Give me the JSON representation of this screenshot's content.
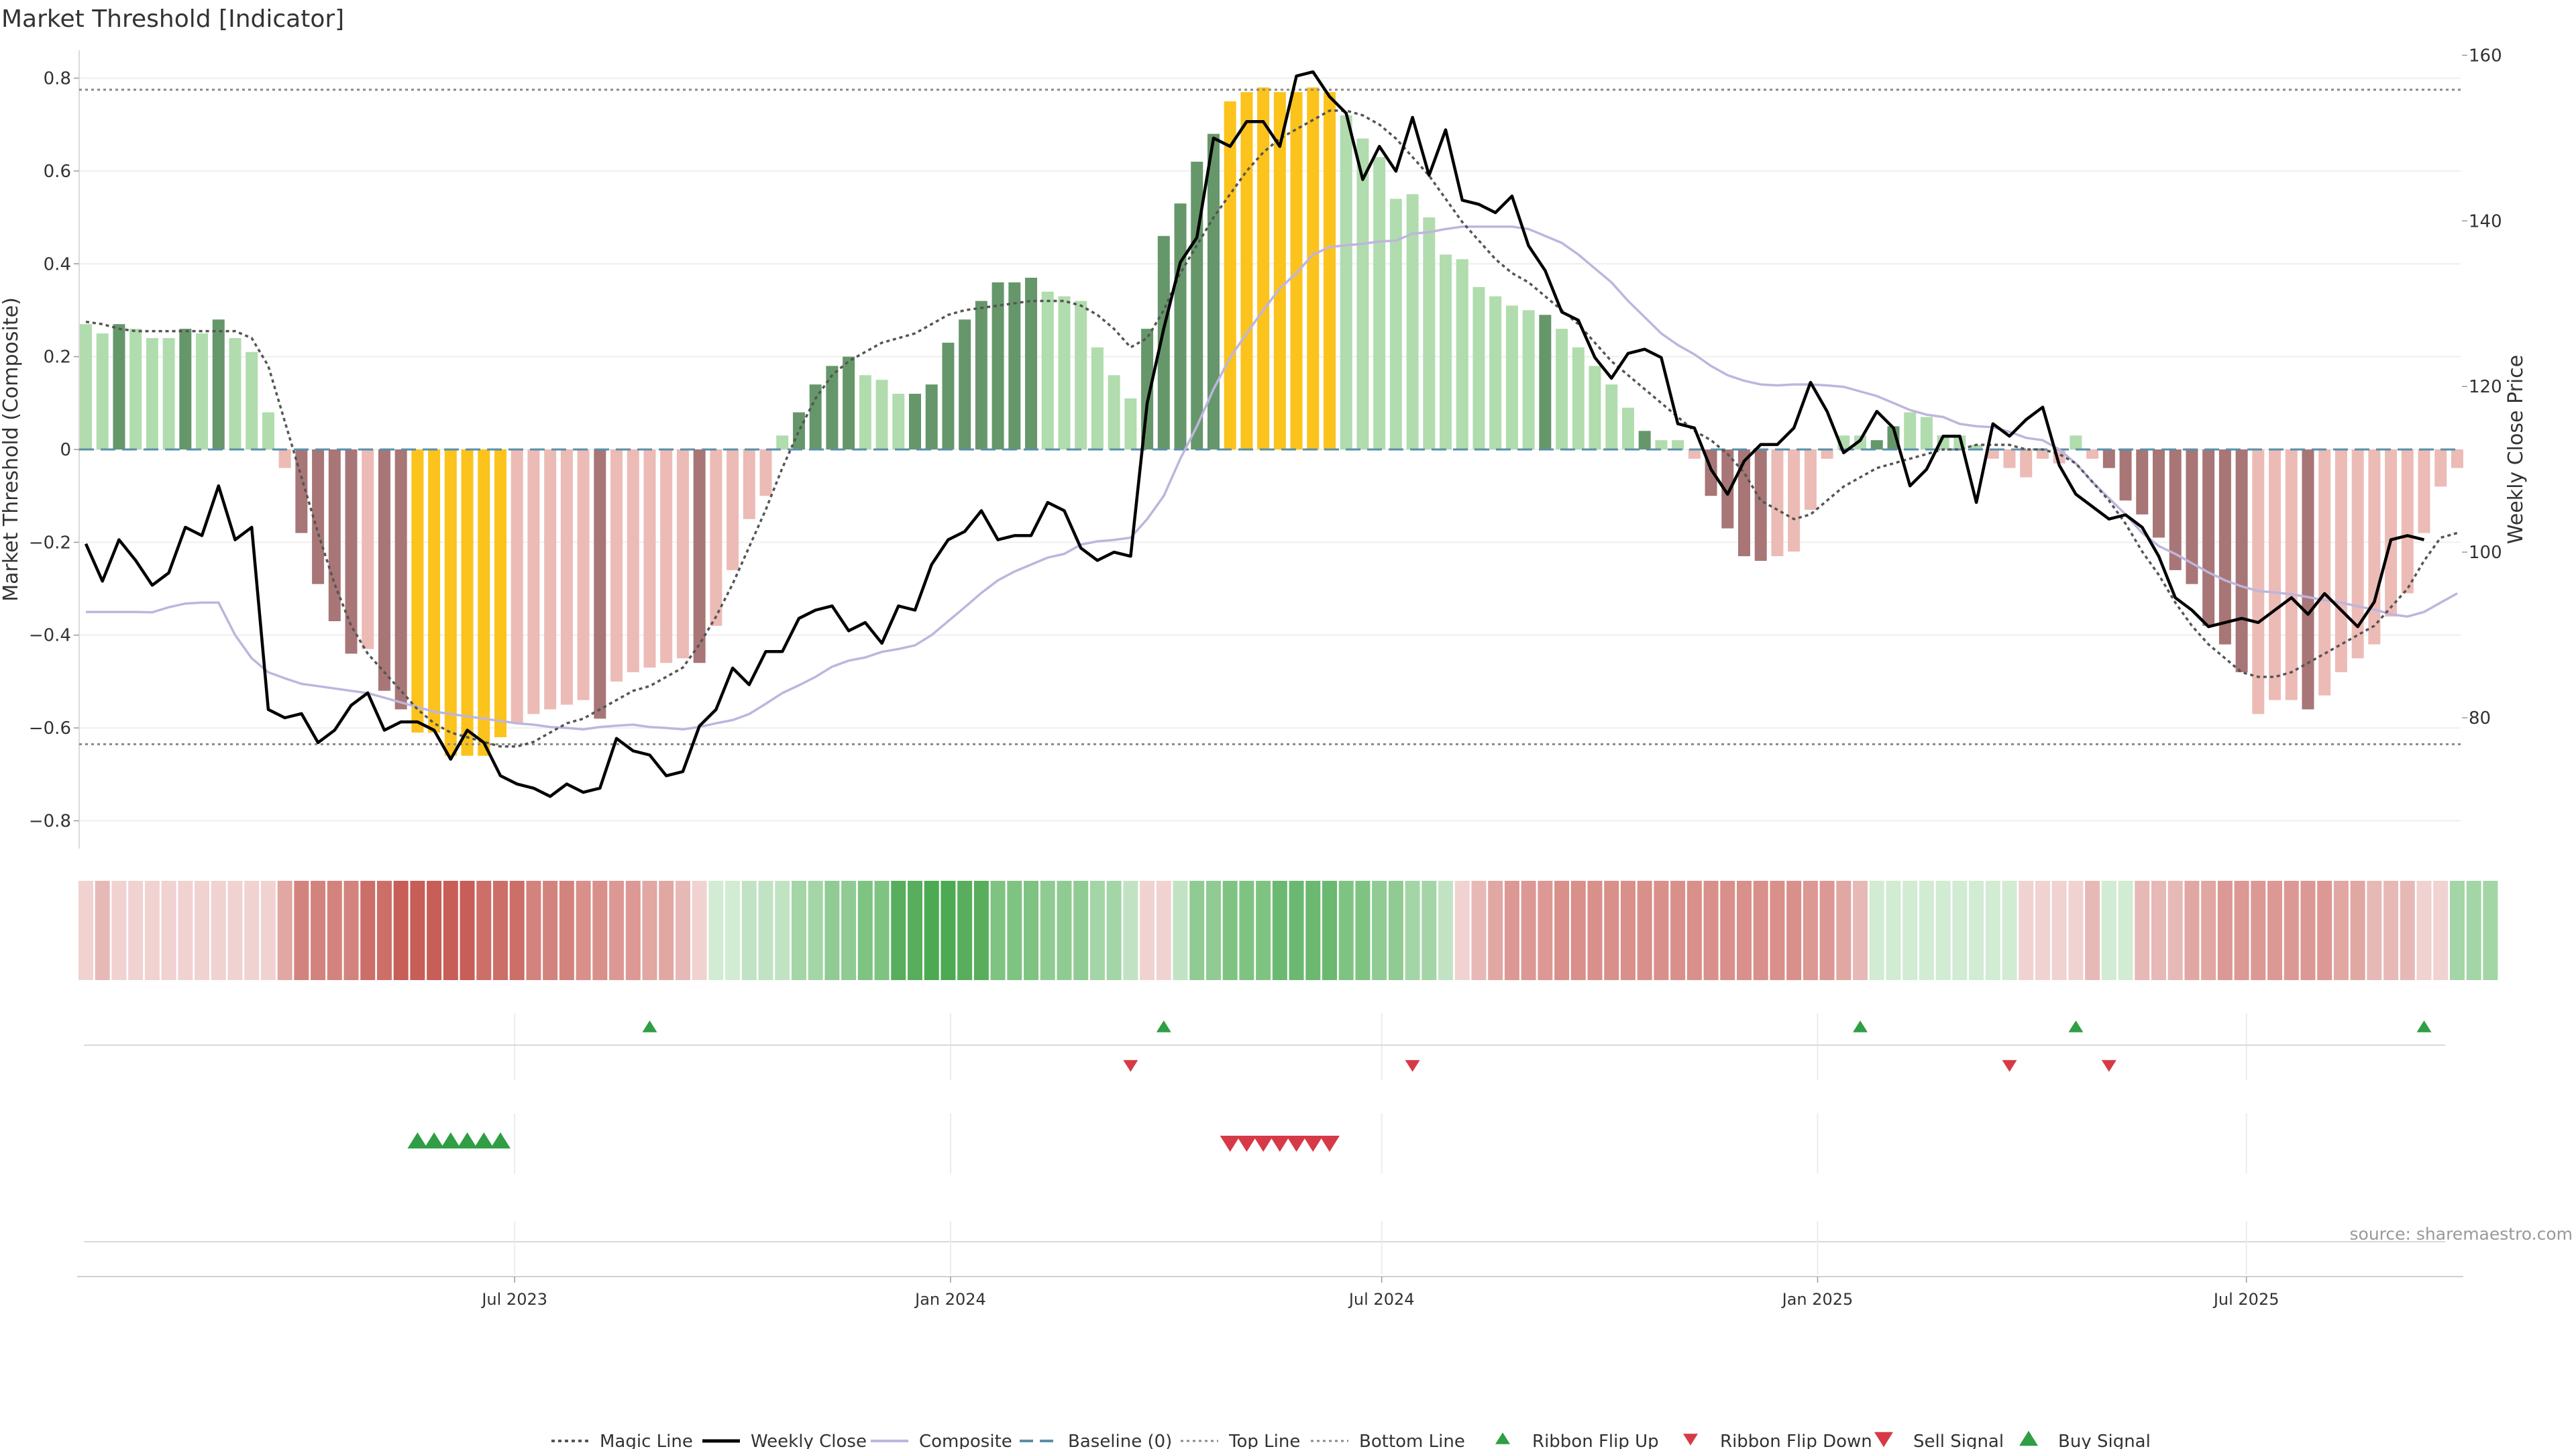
{
  "chart_data": {
    "type": "bar",
    "title": "Market Threshold [Indicator]",
    "source": "source: sharemaestro.com",
    "ylabel_left": "Market Threshold (Composite)",
    "ylabel_right": "Weekly Close Price",
    "ylim_left": [
      -0.86,
      0.86
    ],
    "ylim_right": [
      64.2,
      160.6
    ],
    "yticks_left": [
      "0.8",
      "0.6",
      "0.4",
      "0.2",
      "0",
      "−0.2",
      "−0.4",
      "−0.6",
      "−0.8"
    ],
    "yticks_right": [
      "160",
      "140",
      "120",
      "100",
      "80"
    ],
    "x_start": "2023-01-01",
    "week_count": 144,
    "x_ticks": [
      {
        "label": "Jul 2023",
        "date": "2023-07-01"
      },
      {
        "label": "Jan 2024",
        "date": "2024-01-01"
      },
      {
        "label": "Jul 2024",
        "date": "2024-07-01"
      },
      {
        "label": "Jan 2025",
        "date": "2025-01-01"
      },
      {
        "label": "Jul 2025",
        "date": "2025-07-01"
      }
    ],
    "reference_lines": {
      "top": 0.775,
      "bottom": -0.635,
      "baseline": 0
    },
    "colors": {
      "pos_strong": "#66976a",
      "pos_light": "#b1dcae",
      "neg_strong": "#a87676",
      "neg_light": "#ecbbb6",
      "extreme": "#fbc31b",
      "close": "#000000",
      "composite": "#beb5de",
      "magic": "#555555",
      "baseline": "#5a8fa8",
      "ref": "#888888",
      "buy": "#2f9e44",
      "sell": "#d63a46"
    },
    "composite_bars": [
      0.27,
      0.25,
      0.27,
      0.26,
      0.24,
      0.24,
      0.26,
      0.25,
      0.28,
      0.24,
      0.21,
      0.08,
      -0.04,
      -0.18,
      -0.29,
      -0.37,
      -0.44,
      -0.43,
      -0.52,
      -0.56,
      -0.61,
      -0.61,
      -0.66,
      -0.66,
      -0.66,
      -0.62,
      -0.59,
      -0.57,
      -0.56,
      -0.55,
      -0.54,
      -0.58,
      -0.5,
      -0.48,
      -0.47,
      -0.46,
      -0.45,
      -0.46,
      -0.38,
      -0.26,
      -0.15,
      -0.1,
      0.03,
      0.08,
      0.14,
      0.18,
      0.2,
      0.16,
      0.15,
      0.12,
      0.12,
      0.14,
      0.23,
      0.28,
      0.32,
      0.36,
      0.36,
      0.37,
      0.34,
      0.33,
      0.32,
      0.22,
      0.16,
      0.11,
      0.26,
      0.46,
      0.53,
      0.62,
      0.68,
      0.75,
      0.77,
      0.78,
      0.77,
      0.77,
      0.78,
      0.77,
      0.72,
      0.67,
      0.63,
      0.54,
      0.55,
      0.5,
      0.42,
      0.41,
      0.35,
      0.33,
      0.31,
      0.3,
      0.29,
      0.26,
      0.22,
      0.18,
      0.14,
      0.09,
      0.04,
      0.02,
      0.02,
      -0.02,
      -0.1,
      -0.17,
      -0.23,
      -0.24,
      -0.23,
      -0.22,
      -0.13,
      -0.02,
      0.03,
      0.03,
      0.02,
      0.05,
      0.08,
      0.07,
      0.03,
      0.03,
      0.01,
      -0.02,
      -0.04,
      -0.06,
      -0.02,
      -0.03,
      0.03,
      -0.02,
      -0.04,
      -0.11,
      -0.14,
      -0.19,
      -0.26,
      -0.29,
      -0.38,
      -0.42,
      -0.48,
      -0.57,
      -0.54,
      -0.54,
      -0.56,
      -0.53,
      -0.48,
      -0.45,
      -0.42,
      -0.36,
      -0.31,
      -0.18,
      -0.08,
      -0.04
    ],
    "composite_bar_styles": [
      "l",
      "l",
      "s",
      "l",
      "l",
      "l",
      "s",
      "l",
      "s",
      "l",
      "l",
      "l",
      "l",
      "s",
      "s",
      "s",
      "s",
      "l",
      "s",
      "s",
      "y",
      "y",
      "y",
      "y",
      "y",
      "y",
      "l",
      "l",
      "l",
      "l",
      "l",
      "s",
      "l",
      "l",
      "l",
      "l",
      "l",
      "s",
      "l",
      "l",
      "l",
      "l",
      "l",
      "s",
      "s",
      "s",
      "s",
      "l",
      "l",
      "l",
      "s",
      "s",
      "s",
      "s",
      "s",
      "s",
      "s",
      "s",
      "l",
      "l",
      "l",
      "l",
      "l",
      "l",
      "s",
      "s",
      "s",
      "s",
      "s",
      "y",
      "y",
      "y",
      "y",
      "y",
      "y",
      "y",
      "l",
      "l",
      "l",
      "l",
      "l",
      "l",
      "l",
      "l",
      "l",
      "l",
      "l",
      "l",
      "s",
      "l",
      "l",
      "l",
      "l",
      "l",
      "s",
      "l",
      "l",
      "l",
      "s",
      "s",
      "s",
      "s",
      "l",
      "l",
      "l",
      "l",
      "l",
      "l",
      "s",
      "s",
      "l",
      "l",
      "l",
      "l",
      "l",
      "l",
      "l",
      "l",
      "l",
      "l",
      "l",
      "l",
      "s",
      "s",
      "s",
      "s",
      "s",
      "s",
      "s",
      "s",
      "s",
      "l",
      "l",
      "l",
      "s",
      "l",
      "l",
      "l",
      "l",
      "l",
      "l",
      "l",
      "l",
      "l"
    ],
    "weekly_close": [
      101.0,
      96.5,
      101.5,
      99.0,
      96.0,
      97.5,
      103.0,
      102.0,
      108.0,
      101.5,
      103.0,
      81.0,
      80.0,
      80.5,
      77.0,
      78.5,
      81.5,
      83.0,
      78.5,
      79.5,
      79.5,
      78.5,
      75.0,
      78.5,
      77.0,
      73.0,
      72.0,
      71.5,
      70.5,
      72.0,
      71.0,
      71.5,
      77.5,
      76.0,
      75.5,
      73.0,
      73.5,
      79.0,
      81.0,
      86.0,
      84.0,
      88.0,
      88.0,
      92.0,
      93.0,
      93.5,
      90.5,
      91.5,
      89.0,
      93.5,
      93.0,
      98.5,
      101.5,
      102.5,
      105.0,
      101.5,
      102.0,
      102.0,
      106.0,
      105.0,
      100.5,
      99.0,
      100.0,
      99.5,
      118.0,
      127.0,
      135.0,
      138.0,
      150.0,
      149.0,
      152.0,
      152.0,
      149.0,
      157.5,
      158.0,
      155.0,
      153.0,
      145.0,
      149.0,
      146.0,
      152.5,
      145.5,
      151.0,
      142.5,
      142.0,
      141.0,
      143.0,
      137.0,
      134.0,
      129.0,
      128.0,
      123.5,
      121.0,
      124.0,
      124.5,
      123.5,
      115.5,
      115.0,
      110.0,
      107.0,
      111.0,
      113.0,
      113.0,
      115.0,
      120.5,
      117.0,
      112.0,
      113.5,
      117.0,
      115.0,
      108.0,
      110.0,
      114.0,
      114.0,
      106.0,
      115.5,
      114.0,
      116.0,
      117.5,
      110.5,
      107.0,
      105.5,
      104.0,
      104.5,
      103.0,
      99.5,
      94.5,
      93.0,
      91.0,
      91.5,
      92.0,
      91.5,
      93.0,
      94.5,
      92.5,
      95.0,
      93.0,
      91.0,
      94.0,
      101.5,
      102.0,
      101.5
    ],
    "composite_line": [
      -0.35,
      -0.35,
      -0.35,
      -0.35,
      -0.351,
      -0.34,
      -0.332,
      -0.33,
      -0.33,
      -0.4,
      -0.45,
      -0.48,
      -0.493,
      -0.505,
      -0.51,
      -0.515,
      -0.52,
      -0.525,
      -0.535,
      -0.545,
      -0.555,
      -0.565,
      -0.57,
      -0.575,
      -0.58,
      -0.585,
      -0.59,
      -0.593,
      -0.598,
      -0.6,
      -0.603,
      -0.598,
      -0.595,
      -0.593,
      -0.598,
      -0.6,
      -0.603,
      -0.598,
      -0.59,
      -0.583,
      -0.57,
      -0.548,
      -0.525,
      -0.508,
      -0.49,
      -0.468,
      -0.455,
      -0.448,
      -0.436,
      -0.43,
      -0.422,
      -0.4,
      -0.37,
      -0.34,
      -0.309,
      -0.282,
      -0.263,
      -0.248,
      -0.233,
      -0.225,
      -0.205,
      -0.198,
      -0.195,
      -0.19,
      -0.15,
      -0.1,
      -0.02,
      0.05,
      0.13,
      0.198,
      0.25,
      0.3,
      0.347,
      0.38,
      0.42,
      0.436,
      0.44,
      0.443,
      0.448,
      0.45,
      0.465,
      0.468,
      0.475,
      0.48,
      0.48,
      0.48,
      0.48,
      0.475,
      0.46,
      0.445,
      0.42,
      0.39,
      0.36,
      0.32,
      0.285,
      0.25,
      0.225,
      0.205,
      0.18,
      0.16,
      0.148,
      0.14,
      0.138,
      0.14,
      0.14,
      0.138,
      0.135,
      0.125,
      0.115,
      0.1,
      0.085,
      0.075,
      0.07,
      0.055,
      0.05,
      0.048,
      0.038,
      0.025,
      0.02,
      0.0,
      -0.03,
      -0.07,
      -0.105,
      -0.14,
      -0.18,
      -0.208,
      -0.225,
      -0.245,
      -0.265,
      -0.282,
      -0.295,
      -0.305,
      -0.308,
      -0.312,
      -0.318,
      -0.325,
      -0.33,
      -0.338,
      -0.345,
      -0.355,
      -0.36,
      -0.35,
      -0.33,
      -0.31
    ],
    "magic_line": [
      0.275,
      0.27,
      0.26,
      0.255,
      0.255,
      0.255,
      0.255,
      0.255,
      0.255,
      0.255,
      0.24,
      0.18,
      0.06,
      -0.06,
      -0.18,
      -0.29,
      -0.38,
      -0.44,
      -0.48,
      -0.52,
      -0.56,
      -0.59,
      -0.61,
      -0.62,
      -0.63,
      -0.64,
      -0.64,
      -0.63,
      -0.61,
      -0.59,
      -0.58,
      -0.56,
      -0.54,
      -0.52,
      -0.51,
      -0.49,
      -0.47,
      -0.42,
      -0.36,
      -0.29,
      -0.21,
      -0.13,
      -0.04,
      0.04,
      0.11,
      0.16,
      0.19,
      0.21,
      0.23,
      0.24,
      0.25,
      0.27,
      0.29,
      0.3,
      0.305,
      0.31,
      0.315,
      0.32,
      0.32,
      0.32,
      0.31,
      0.29,
      0.26,
      0.22,
      0.24,
      0.3,
      0.38,
      0.44,
      0.5,
      0.55,
      0.6,
      0.64,
      0.67,
      0.69,
      0.71,
      0.73,
      0.73,
      0.72,
      0.7,
      0.67,
      0.63,
      0.59,
      0.54,
      0.49,
      0.45,
      0.41,
      0.38,
      0.36,
      0.33,
      0.3,
      0.27,
      0.23,
      0.19,
      0.16,
      0.13,
      0.1,
      0.07,
      0.04,
      0.02,
      -0.01,
      -0.05,
      -0.11,
      -0.13,
      -0.15,
      -0.14,
      -0.11,
      -0.08,
      -0.06,
      -0.04,
      -0.03,
      -0.02,
      -0.01,
      0.0,
      0.0,
      0.01,
      0.01,
      0.01,
      0.0,
      0.0,
      -0.01,
      -0.03,
      -0.07,
      -0.11,
      -0.16,
      -0.22,
      -0.27,
      -0.33,
      -0.38,
      -0.42,
      -0.45,
      -0.48,
      -0.49,
      -0.49,
      -0.48,
      -0.46,
      -0.44,
      -0.42,
      -0.4,
      -0.38,
      -0.34,
      -0.3,
      -0.24,
      -0.19,
      -0.18
    ],
    "ribbon_colors": [
      "#f0d2d1",
      "#e7b9b6",
      "#f0d2d1",
      "#f0d2d1",
      "#f0d2d1",
      "#f0d2d1",
      "#f0d2d1",
      "#f0d2d1",
      "#f0d2d1",
      "#f0d2d1",
      "#f0d2d1",
      "#f0d2d1",
      "#e0a7a3",
      "#d3837d",
      "#d3837d",
      "#d3837d",
      "#d3837d",
      "#cc6f69",
      "#cc6f69",
      "#c75e57",
      "#c75e57",
      "#c75e57",
      "#c75e57",
      "#c75e57",
      "#cc6f69",
      "#cc6f69",
      "#cc6f69",
      "#d3837d",
      "#d3837d",
      "#d3837d",
      "#d98f8a",
      "#d98f8a",
      "#dc9894",
      "#dc9894",
      "#e0a7a3",
      "#e0a7a3",
      "#e7b9b6",
      "#f0d2d1",
      "#d2ebd3",
      "#d2ebd3",
      "#c1e3c3",
      "#c1e3c3",
      "#c1e3c3",
      "#a4d5a6",
      "#a4d5a6",
      "#8fcb92",
      "#8fcb92",
      "#7fc383",
      "#7fc383",
      "#58ae5d",
      "#58ae5d",
      "#4caa52",
      "#4caa52",
      "#58ae5d",
      "#58ae5d",
      "#7fc383",
      "#7fc383",
      "#7fc383",
      "#8fcb92",
      "#8fcb92",
      "#8fcb92",
      "#a4d5a6",
      "#a4d5a6",
      "#c1e3c3",
      "#f0d2d1",
      "#f0d2d1",
      "#c1e3c3",
      "#8fcb92",
      "#8fcb92",
      "#7fc383",
      "#7fc383",
      "#7fc383",
      "#6bb870",
      "#6bb870",
      "#6bb870",
      "#6bb870",
      "#7fc383",
      "#7fc383",
      "#8fcb92",
      "#8fcb92",
      "#a4d5a6",
      "#a4d5a6",
      "#c1e3c3",
      "#f0d2d1",
      "#e7b9b6",
      "#e0a7a3",
      "#dc9894",
      "#dc9894",
      "#dc9894",
      "#d98f8a",
      "#d98f8a",
      "#d98f8a",
      "#d98f8a",
      "#d98f8a",
      "#d98f8a",
      "#d98f8a",
      "#d98f8a",
      "#d98f8a",
      "#d98f8a",
      "#d98f8a",
      "#d98f8a",
      "#d98f8a",
      "#d98f8a",
      "#d98f8a",
      "#dc9894",
      "#dc9894",
      "#e0a7a3",
      "#e7b9b6",
      "#d2ebd3",
      "#d2ebd3",
      "#d2ebd3",
      "#d2ebd3",
      "#d2ebd3",
      "#d2ebd3",
      "#d2ebd3",
      "#d2ebd3",
      "#d2ebd3",
      "#f0d2d1",
      "#f0d2d1",
      "#f0d2d1",
      "#f0d2d1",
      "#e7b9b6",
      "#d2ebd3",
      "#d2ebd3",
      "#e7b9b6",
      "#e7b9b6",
      "#e7b9b6",
      "#e0a7a3",
      "#e0a7a3",
      "#dc9894",
      "#dc9894",
      "#dc9894",
      "#dc9894",
      "#dc9894",
      "#dc9894",
      "#dc9894",
      "#e0a7a3",
      "#e0a7a3",
      "#e7b9b6",
      "#e7b9b6",
      "#e7b9b6",
      "#f0d2d1",
      "#f0d2d1",
      "#a4d5a6",
      "#a4d5a6",
      "#a4d5a6"
    ],
    "ribbon_flip_up_weeks": [
      34,
      65,
      107,
      120,
      141
    ],
    "ribbon_flip_down_weeks": [
      63,
      80,
      116,
      122
    ],
    "buy_signal_weeks": [
      20,
      21,
      22,
      23,
      24,
      25
    ],
    "sell_signal_weeks": [
      69,
      70,
      71,
      72,
      73,
      74,
      75
    ],
    "legend": [
      {
        "label": "Magic Line",
        "marker": "dotted"
      },
      {
        "label": "Weekly Close",
        "marker": "solid"
      },
      {
        "label": "Composite",
        "marker": "composite"
      },
      {
        "label": "Baseline (0)",
        "marker": "dashed"
      },
      {
        "label": "Top Line",
        "marker": "ref"
      },
      {
        "label": "Bottom Line",
        "marker": "ref"
      },
      {
        "label": "Ribbon Flip Up",
        "marker": "up-small"
      },
      {
        "label": "Ribbon Flip Down",
        "marker": "down-small"
      },
      {
        "label": "Sell Signal",
        "marker": "down-big"
      },
      {
        "label": "Buy Signal",
        "marker": "up-big"
      }
    ]
  }
}
